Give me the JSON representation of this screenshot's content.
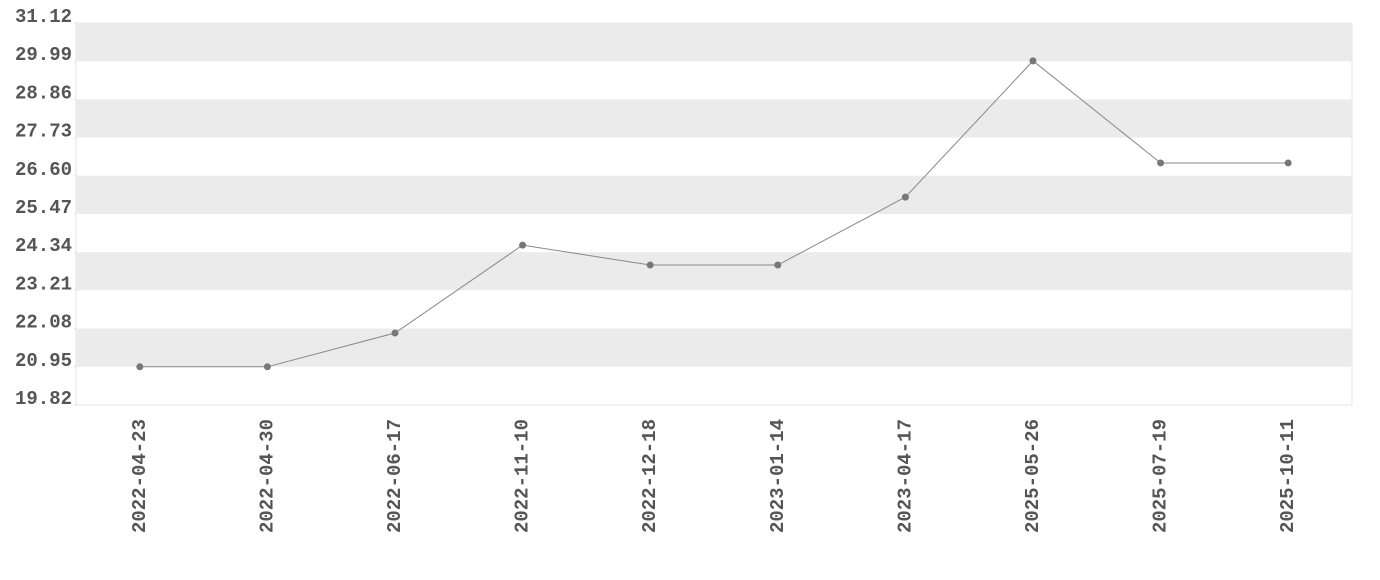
{
  "chart_data": {
    "type": "line",
    "categories": [
      "2022-04-23",
      "2022-04-30",
      "2022-06-17",
      "2022-11-10",
      "2022-12-18",
      "2023-01-14",
      "2023-04-17",
      "2025-05-26",
      "2025-07-19",
      "2025-10-11"
    ],
    "values": [
      20.95,
      20.95,
      21.95,
      24.55,
      23.96,
      23.96,
      25.97,
      30.0,
      26.98,
      26.98
    ],
    "color": "#888888",
    "marker_color": "#777777",
    "ylim": [
      19.82,
      31.12
    ],
    "yticks": [
      19.82,
      20.95,
      22.08,
      23.21,
      24.34,
      25.47,
      {
        "value": 26.6,
        "label": "26.60"
      },
      27.73,
      28.86,
      29.99,
      31.12
    ],
    "grid": true,
    "grid_color": "#ebebeb"
  }
}
